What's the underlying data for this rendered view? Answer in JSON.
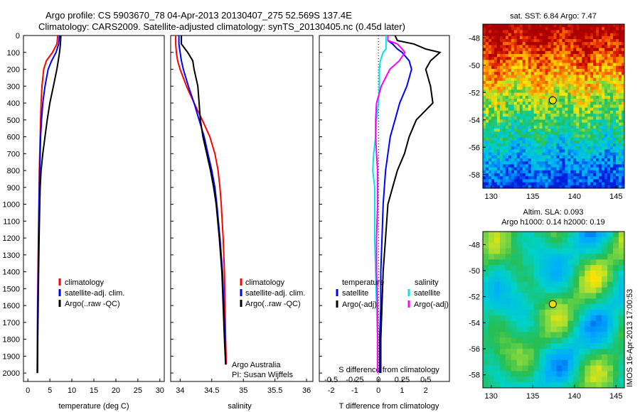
{
  "title_line1": "Argo profile: CS 5903670_78 04-Apr-2013 20130407_275 52.569S 137.4E",
  "title_line2": "Climatology: CARS2009. Satellite-adjusted climatology: synTS_20130405.nc (0.45d later)",
  "colors": {
    "climatology": "#ff0000",
    "satellite": "#0000ff",
    "argo": "#000000",
    "argo_s_adj": "#ff00ff",
    "sat_s": "#00e5e5"
  },
  "temp_panel": {
    "xlabel": "temperature (deg C)",
    "xticks": [
      "0",
      "5",
      "10",
      "15",
      "20",
      "25",
      "30"
    ],
    "yticks": [
      "0",
      "100",
      "200",
      "300",
      "400",
      "500",
      "600",
      "700",
      "800",
      "900",
      "1000",
      "1100",
      "1200",
      "1300",
      "1400",
      "1500",
      "1600",
      "1700",
      "1800",
      "1900",
      "2000"
    ],
    "legend": [
      "climatology",
      "satellite-adj. clim.",
      "Argo(..raw -QC)"
    ]
  },
  "sal_panel": {
    "xlabel": "salinity",
    "xticks": [
      "34",
      "34.5",
      "35",
      "35.5",
      "36"
    ],
    "legend": [
      "climatology",
      "satellite-adj. clim.",
      "Argo(..raw -QC)"
    ],
    "credit1": "Argo Australia",
    "credit2": "PI: Susan Wijffels"
  },
  "diff_panel": {
    "xlabel": "T difference from climatology",
    "xticks": [
      "-2",
      "-1",
      "0",
      "1",
      "2"
    ],
    "s_label": "S difference from climatology",
    "s_ticks": [
      "-0.5",
      "-0.25",
      "0",
      "0.25",
      "0.5"
    ],
    "legend_left_title": "temperature",
    "legend_right_title": "salinity",
    "legend_left": [
      "satellite",
      "Argo(-adj)"
    ],
    "legend_right": [
      "satellite",
      "Argo(-adj)"
    ]
  },
  "sst_map": {
    "title": "sat. SST: 6.84  Argo: 7.47",
    "xticks": [
      "130",
      "135",
      "140",
      "145"
    ],
    "yticks": [
      "-48",
      "-50",
      "-52",
      "-54",
      "-56",
      "-58"
    ]
  },
  "sla_map": {
    "title1": "Altim. SLA: 0.093",
    "title2": "Argo h1000: 0.14 h2000: 0.19",
    "xticks": [
      "130",
      "135",
      "140",
      "145"
    ],
    "yticks": [
      "-48",
      "-50",
      "-52",
      "-54",
      "-56",
      "-58"
    ]
  },
  "stamp": "IMOS 16-Apr-2013 17:00:53",
  "chart_data": [
    {
      "type": "line",
      "xlabel": "temperature (deg C)",
      "xlim": [
        -1,
        31
      ],
      "ylim": [
        2050,
        0
      ],
      "depth": [
        0,
        50,
        100,
        150,
        200,
        300,
        400,
        500,
        600,
        700,
        800,
        900,
        1000,
        1200,
        1400,
        1600,
        1800,
        2000
      ],
      "series": [
        {
          "name": "climatology",
          "values": [
            6.8,
            6.6,
            5.6,
            4.2,
            3.6,
            3.2,
            3.0,
            2.9,
            2.8,
            2.7,
            2.6,
            2.55,
            2.5,
            2.4,
            2.3,
            2.2,
            2.15,
            2.1
          ]
        },
        {
          "name": "satellite-adj. clim.",
          "values": [
            7.2,
            7.0,
            6.4,
            5.4,
            4.6,
            3.9,
            3.4,
            3.1,
            2.9,
            2.8,
            2.7,
            2.6,
            2.55,
            2.45,
            2.35,
            2.25,
            2.2,
            2.15
          ]
        },
        {
          "name": "Argo(..raw -QC)",
          "values": [
            7.5,
            7.4,
            7.2,
            6.9,
            6.6,
            5.8,
            5.0,
            4.4,
            3.9,
            3.4,
            3.0,
            2.8,
            2.7,
            2.55,
            2.45,
            2.35,
            2.25,
            2.2
          ]
        }
      ]
    },
    {
      "type": "line",
      "xlabel": "salinity",
      "xlim": [
        33.85,
        36.1
      ],
      "ylim": [
        2050,
        0
      ],
      "depth": [
        0,
        50,
        100,
        150,
        200,
        300,
        400,
        500,
        600,
        700,
        800,
        900,
        1000,
        1200,
        1400,
        1600,
        1800,
        1950
      ],
      "series": [
        {
          "name": "climatology",
          "values": [
            33.93,
            33.93,
            33.94,
            33.96,
            34.0,
            34.1,
            34.22,
            34.35,
            34.47,
            34.55,
            34.6,
            34.63,
            34.65,
            34.68,
            34.7,
            34.71,
            34.72,
            34.73
          ]
        },
        {
          "name": "satellite-adj. clim.",
          "values": [
            33.98,
            33.98,
            34.0,
            34.02,
            34.05,
            34.13,
            34.22,
            34.3,
            34.38,
            34.44,
            34.5,
            34.55,
            34.58,
            34.63,
            34.67,
            34.69,
            34.71,
            34.72
          ]
        },
        {
          "name": "Argo(..raw -QC)",
          "values": [
            34.02,
            34.02,
            34.12,
            34.2,
            34.22,
            34.28,
            34.3,
            34.32,
            34.36,
            34.42,
            34.48,
            34.53,
            34.57,
            34.62,
            34.66,
            34.68,
            34.7,
            34.72
          ]
        }
      ]
    },
    {
      "type": "line",
      "xlabel": "T difference from climatology",
      "xlim": [
        -2.5,
        3.0
      ],
      "ylim": [
        2050,
        0
      ],
      "s_xlim": [
        -0.625,
        0.75
      ],
      "depth": [
        0,
        30,
        50,
        80,
        100,
        150,
        200,
        300,
        400,
        500,
        600,
        700,
        800,
        900,
        1000,
        1200,
        1400,
        1600,
        1800,
        2000
      ],
      "series": [
        {
          "name": "temperature satellite",
          "values": [
            0.4,
            0.4,
            0.6,
            0.8,
            1.0,
            1.3,
            1.4,
            1.2,
            0.9,
            0.7,
            0.5,
            0.4,
            0.3,
            0.25,
            0.2,
            0.15,
            0.1,
            0.1,
            0.05,
            0.05
          ]
        },
        {
          "name": "temperature Argo(-adj)",
          "values": [
            0.7,
            0.8,
            1.5,
            2.0,
            2.6,
            2.2,
            2.0,
            2.2,
            2.3,
            1.6,
            1.3,
            1.1,
            0.8,
            0.6,
            0.4,
            0.3,
            0.2,
            0.15,
            0.1,
            0.1
          ]
        },
        {
          "name": "salinity satellite",
          "values": [
            0.08,
            0.08,
            0.08,
            0.08,
            0.05,
            0.02,
            0.01,
            0.01,
            0.0,
            -0.02,
            -0.03,
            -0.05,
            -0.06,
            -0.04,
            -0.04,
            -0.04,
            -0.03,
            -0.02,
            -0.01,
            -0.01
          ]
        },
        {
          "name": "salinity Argo(-adj)",
          "values": [
            0.1,
            0.1,
            0.2,
            0.25,
            0.28,
            0.22,
            0.12,
            0.03,
            -0.02,
            -0.03,
            -0.03,
            -0.02,
            -0.01,
            -0.01,
            -0.01,
            -0.02,
            -0.02,
            -0.01,
            -0.01,
            -0.01
          ]
        }
      ]
    }
  ]
}
